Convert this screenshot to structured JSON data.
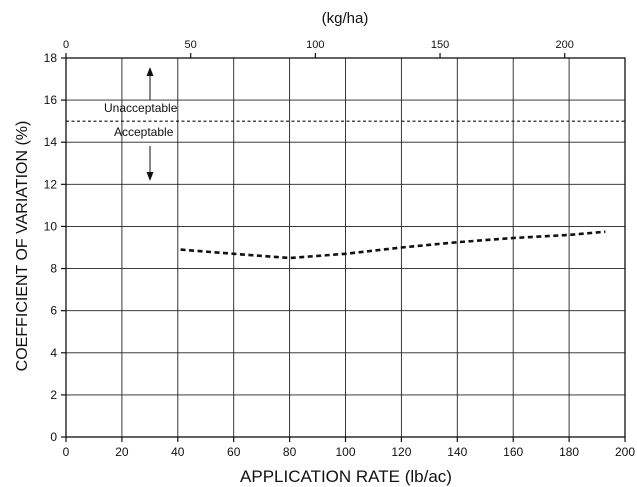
{
  "chart_data": {
    "type": "line",
    "xlabel": "APPLICATION RATE (lb/ac)",
    "ylabel": "COEFFICIENT OF VARIATION (%)",
    "top_axis_label": "(kg/ha)",
    "xlim": [
      0,
      200
    ],
    "ylim": [
      0,
      18
    ],
    "x_ticks": [
      "0",
      "20",
      "40",
      "60",
      "80",
      "100",
      "120",
      "140",
      "160",
      "180",
      "200"
    ],
    "y_ticks": [
      "0",
      "2",
      "4",
      "6",
      "8",
      "10",
      "12",
      "14",
      "16",
      "18"
    ],
    "top_ticks": [
      {
        "label": "0",
        "kg_ha": 0
      },
      {
        "label": "50",
        "kg_ha": 50
      },
      {
        "label": "100",
        "kg_ha": 100
      },
      {
        "label": "150",
        "kg_ha": 150
      },
      {
        "label": "200",
        "kg_ha": 200
      }
    ],
    "kg_per_lb_ac": 1.12085,
    "grid": true,
    "threshold": {
      "y": 15,
      "label_above": "Unacceptable",
      "label_below": "Acceptable"
    },
    "series": [
      {
        "style": "dashed",
        "x": [
          41,
          60,
          70,
          80,
          90,
          100,
          120,
          140,
          160,
          180,
          193
        ],
        "y": [
          8.9,
          8.7,
          8.6,
          8.5,
          8.6,
          8.7,
          9.0,
          9.25,
          9.45,
          9.6,
          9.75
        ]
      }
    ]
  }
}
